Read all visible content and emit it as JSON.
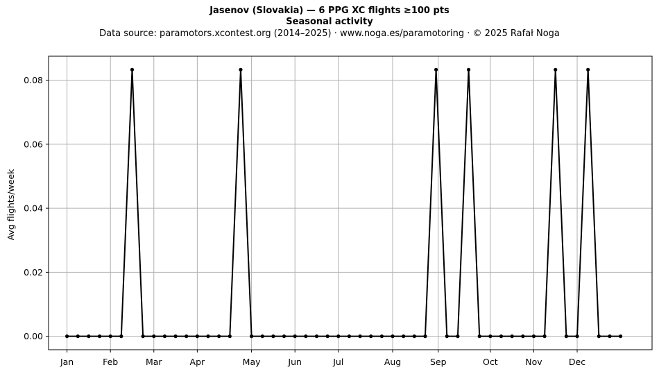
{
  "header": {
    "title": "Jasenov (Slovakia)  —  6 PPG XC flights ≥100 pts",
    "subtitle": "Seasonal activity",
    "source": "Data source: paramotors.xcontest.org (2014–2025)  ·  www.noga.es/paramotoring  ·  © 2025 Rafał Noga"
  },
  "chart_data": {
    "type": "line",
    "title": "Jasenov (Slovakia)  —  6 PPG XC flights ≥100 pts",
    "subtitle": "Seasonal activity",
    "xlabel": "",
    "ylabel": "Avg flights/week",
    "xlim": [
      -1.7,
      53.9
    ],
    "ylim": [
      -0.0042,
      0.0875
    ],
    "grid": true,
    "x_ticks": [
      {
        "label": "Jan",
        "x": 0
      },
      {
        "label": "Feb",
        "x": 4
      },
      {
        "label": "Mar",
        "x": 8
      },
      {
        "label": "Apr",
        "x": 12
      },
      {
        "label": "May",
        "x": 17
      },
      {
        "label": "Jun",
        "x": 21
      },
      {
        "label": "Jul",
        "x": 25
      },
      {
        "label": "Aug",
        "x": 30
      },
      {
        "label": "Sep",
        "x": 34.2
      },
      {
        "label": "Oct",
        "x": 39
      },
      {
        "label": "Nov",
        "x": 43
      },
      {
        "label": "Dec",
        "x": 47
      }
    ],
    "y_ticks": [
      {
        "label": "0.00",
        "y": 0.0
      },
      {
        "label": "0.02",
        "y": 0.02
      },
      {
        "label": "0.04",
        "y": 0.04
      },
      {
        "label": "0.06",
        "y": 0.06
      },
      {
        "label": "0.08",
        "y": 0.08
      }
    ],
    "series": [
      {
        "color": "#000000",
        "x": [
          0,
          1,
          2,
          3,
          4,
          5,
          6,
          7,
          8,
          9,
          10,
          11,
          12,
          13,
          14,
          15,
          16,
          17,
          18,
          19,
          20,
          21,
          22,
          23,
          24,
          25,
          26,
          27,
          28,
          29,
          30,
          31,
          32,
          33,
          34,
          35,
          36,
          37,
          38,
          39,
          40,
          41,
          42,
          43,
          44,
          45,
          46,
          47,
          48,
          49,
          50,
          51
        ],
        "y": [
          0,
          0,
          0,
          0,
          0,
          0,
          0.0833,
          0,
          0,
          0,
          0,
          0,
          0,
          0,
          0,
          0,
          0.0833,
          0,
          0,
          0,
          0,
          0,
          0,
          0,
          0,
          0,
          0,
          0,
          0,
          0,
          0,
          0,
          0,
          0,
          0.0833,
          0,
          0,
          0.0833,
          0,
          0,
          0,
          0,
          0,
          0,
          0,
          0.0833,
          0,
          0,
          0.0833,
          0,
          0,
          0
        ]
      }
    ]
  }
}
